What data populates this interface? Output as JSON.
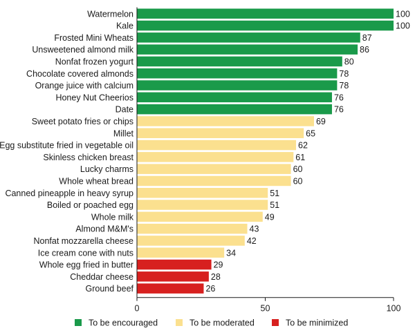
{
  "chart_data": {
    "type": "bar",
    "orientation": "horizontal",
    "title": "",
    "xlabel": "",
    "ylabel": "",
    "xlim": [
      0,
      100
    ],
    "x_ticks": [
      0,
      50,
      100
    ],
    "grid": false,
    "legend_placement": "bottom",
    "colors": {
      "encouraged": "#1a9a4a",
      "moderated": "#fbe08f",
      "minimized": "#d7201f"
    },
    "legend": [
      {
        "key": "encouraged",
        "label": "To be encouraged"
      },
      {
        "key": "moderated",
        "label": "To be moderated"
      },
      {
        "key": "minimized",
        "label": "To be minimized"
      }
    ],
    "categories": [
      "Watermelon",
      "Kale",
      "Frosted Mini Wheats",
      "Unsweetened almond milk",
      "Nonfat frozen yogurt",
      "Chocolate covered almonds",
      "Orange juice with calcium",
      "Honey Nut Cheerios",
      "Date",
      "Sweet potato fries or chips",
      "Millet",
      "Egg substitute fried in vegetable oil",
      "Skinless chicken breast",
      "Lucky charms",
      "Whole wheat bread",
      "Canned pineapple in heavy syrup",
      "Boiled or poached egg",
      "Whole milk",
      "Almond M&M's",
      "Nonfat mozzarella cheese",
      "Ice cream cone with nuts",
      "Whole egg fried in butter",
      "Cheddar cheese",
      "Ground beef"
    ],
    "values": [
      100,
      100,
      87,
      86,
      80,
      78,
      78,
      76,
      76,
      69,
      65,
      62,
      61,
      60,
      60,
      51,
      51,
      49,
      43,
      42,
      34,
      29,
      28,
      26
    ],
    "groups": [
      "encouraged",
      "encouraged",
      "encouraged",
      "encouraged",
      "encouraged",
      "encouraged",
      "encouraged",
      "encouraged",
      "encouraged",
      "moderated",
      "moderated",
      "moderated",
      "moderated",
      "moderated",
      "moderated",
      "moderated",
      "moderated",
      "moderated",
      "moderated",
      "moderated",
      "moderated",
      "minimized",
      "minimized",
      "minimized"
    ]
  }
}
